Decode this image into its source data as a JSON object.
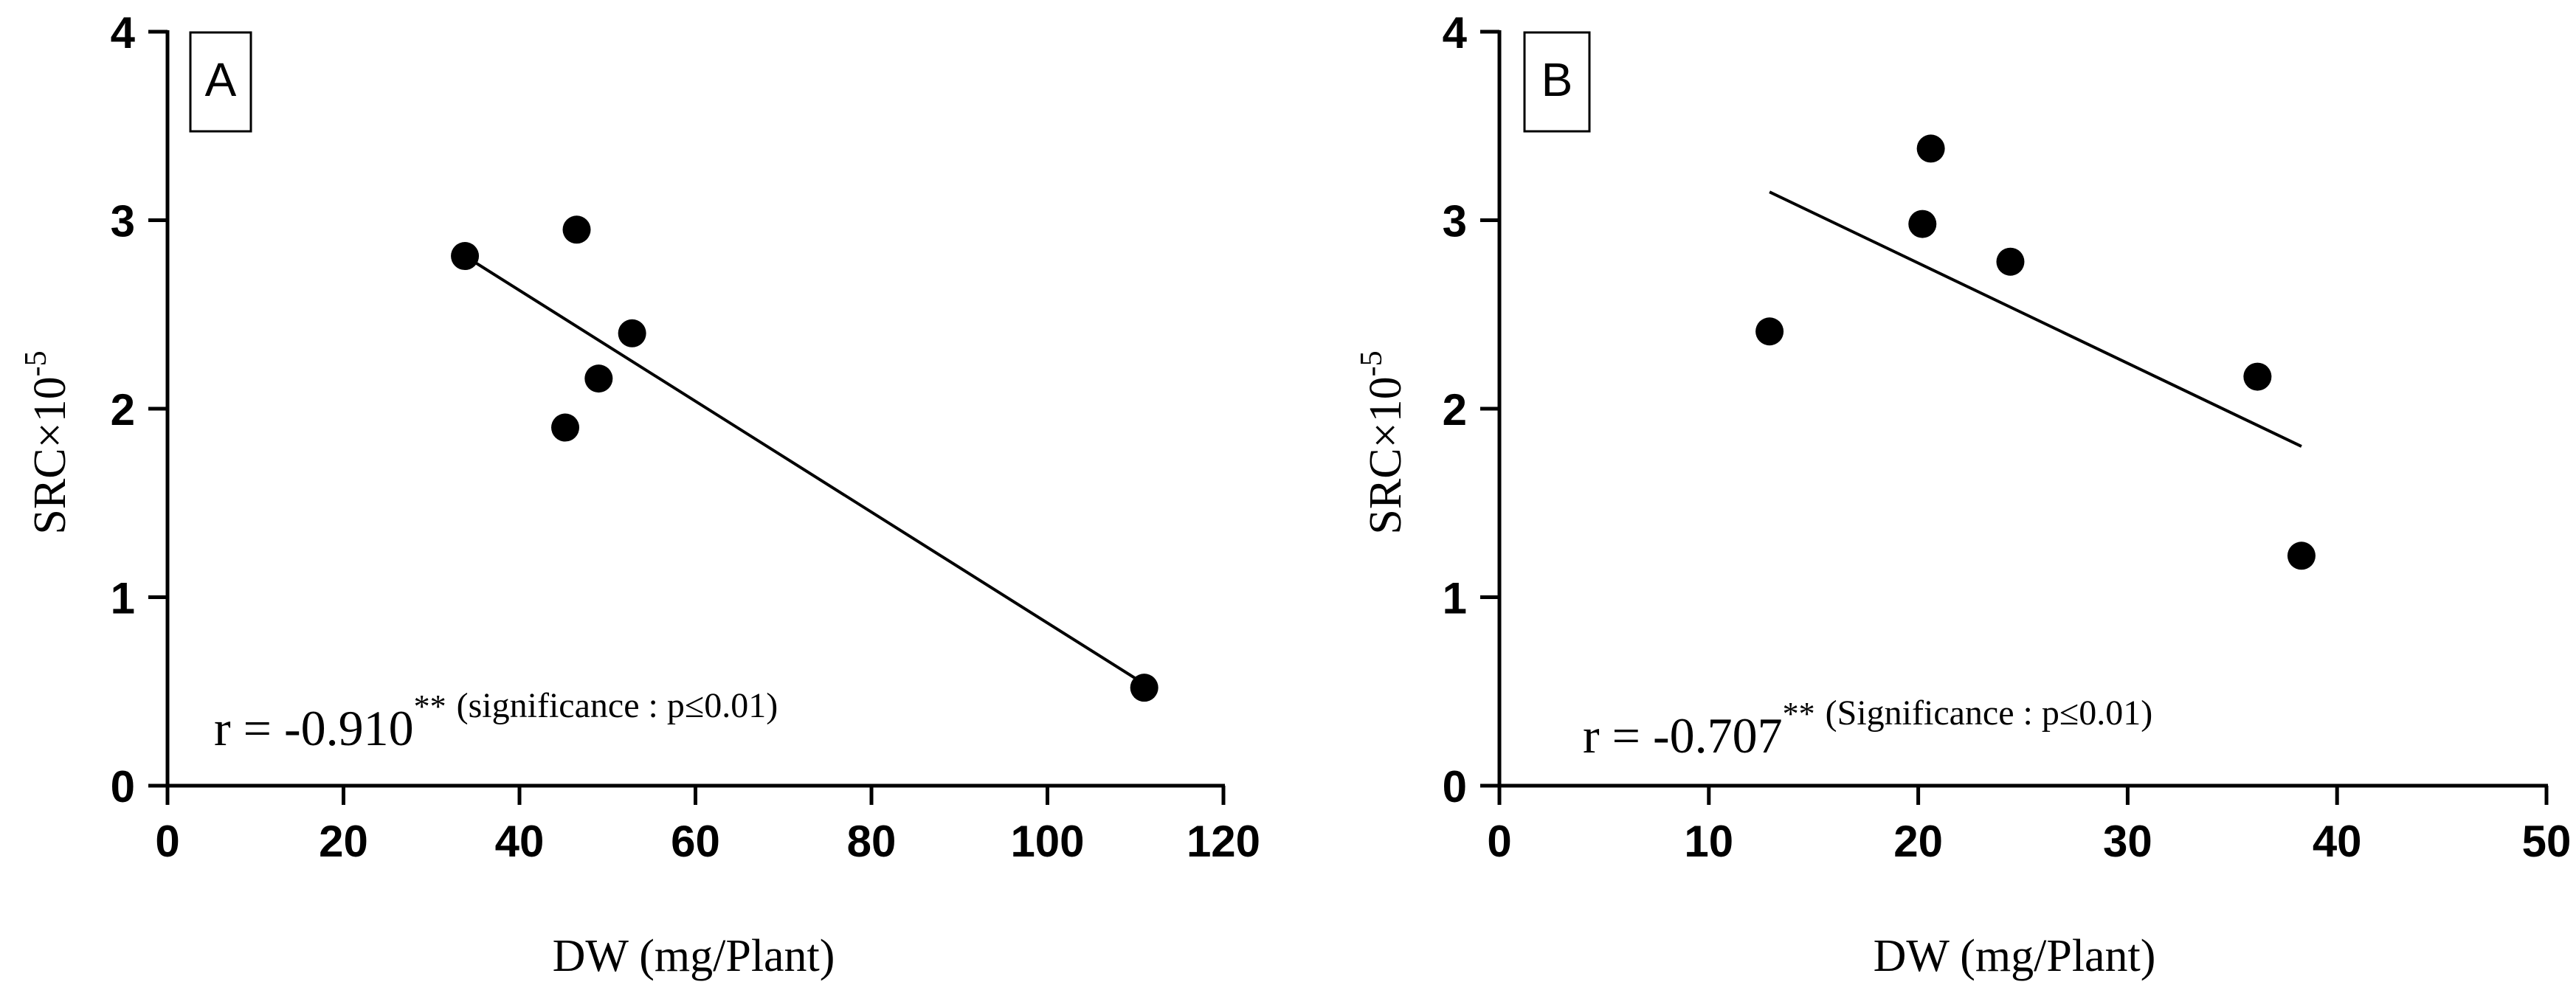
{
  "chart_data": [
    {
      "type": "scatter",
      "panel_label": "A",
      "xlabel": "DW (mg/Plant)",
      "ylabel_base": "SRC×10",
      "ylabel_exp": "-5",
      "xlim": [
        0,
        120
      ],
      "ylim": [
        0,
        4
      ],
      "x_ticks": [
        "0",
        "20",
        "40",
        "60",
        "80",
        "100",
        "120"
      ],
      "y_ticks": [
        "0",
        "1",
        "2",
        "3",
        "4"
      ],
      "points": [
        {
          "x": 33.8,
          "y": 2.81
        },
        {
          "x": 46.5,
          "y": 2.95
        },
        {
          "x": 52.8,
          "y": 2.4
        },
        {
          "x": 49.0,
          "y": 2.16
        },
        {
          "x": 45.2,
          "y": 1.9
        },
        {
          "x": 111.0,
          "y": 0.52
        }
      ],
      "fit_line": {
        "x1": 33.8,
        "y1": 2.81,
        "x2": 111.0,
        "y2": 0.54
      },
      "annotation": {
        "r": "r = -0.910",
        "sup": "**",
        "note": "(significance : p≤0.01)"
      }
    },
    {
      "type": "scatter",
      "panel_label": "B",
      "xlabel": "DW (mg/Plant)",
      "ylabel_base": "SRC×10",
      "ylabel_exp": "-5",
      "xlim": [
        0,
        50
      ],
      "ylim": [
        0,
        4
      ],
      "x_ticks": [
        "0",
        "10",
        "20",
        "30",
        "40",
        "50"
      ],
      "y_ticks": [
        "0",
        "1",
        "2",
        "3",
        "4"
      ],
      "points": [
        {
          "x": 12.9,
          "y": 2.41
        },
        {
          "x": 20.2,
          "y": 2.98
        },
        {
          "x": 20.6,
          "y": 3.38
        },
        {
          "x": 24.4,
          "y": 2.78
        },
        {
          "x": 36.2,
          "y": 2.17
        },
        {
          "x": 38.3,
          "y": 1.22
        }
      ],
      "fit_line": {
        "x1": 12.9,
        "y1": 3.15,
        "x2": 38.3,
        "y2": 1.8
      },
      "annotation": {
        "r": "r = -0.707",
        "sup": "**",
        "note": "(Significance : p≤0.01)"
      }
    }
  ]
}
